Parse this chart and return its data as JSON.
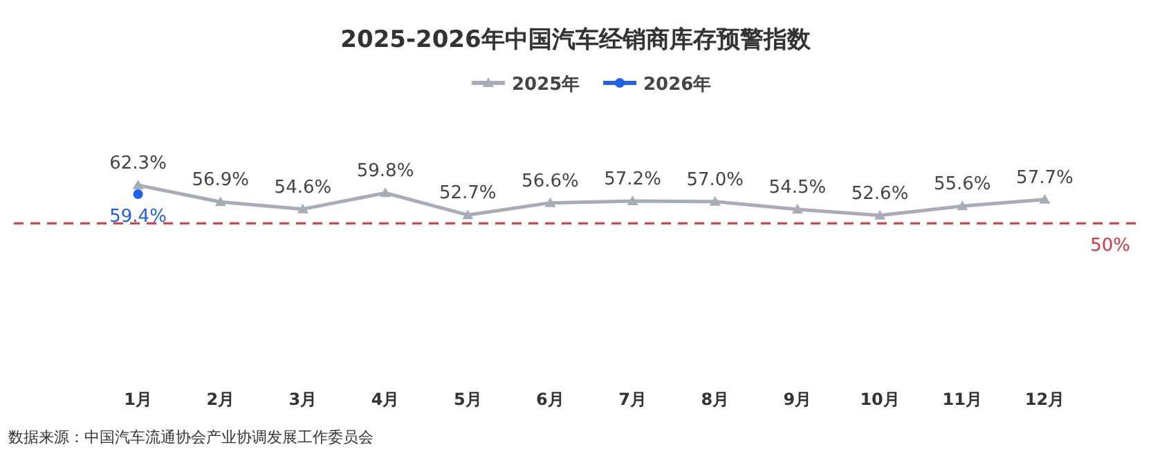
{
  "chart_data": {
    "type": "line",
    "title": "2025-2026年中国汽车经销商库存预警指数",
    "categories": [
      "1月",
      "2月",
      "3月",
      "4月",
      "5月",
      "6月",
      "7月",
      "8月",
      "9月",
      "10月",
      "11月",
      "12月"
    ],
    "series": [
      {
        "name": "2025年",
        "color": "#a7adb8",
        "marker": "triangle",
        "values": [
          62.3,
          56.9,
          54.6,
          59.8,
          52.7,
          56.6,
          57.2,
          57.0,
          54.5,
          52.6,
          55.6,
          57.7
        ],
        "value_labels": [
          "62.3%",
          "56.9%",
          "54.6%",
          "59.8%",
          "52.7%",
          "56.6%",
          "57.2%",
          "57.0%",
          "54.5%",
          "52.6%",
          "55.6%",
          "57.7%"
        ]
      },
      {
        "name": "2026年",
        "color": "#2060f0",
        "marker": "circle",
        "values": [
          59.4,
          null,
          null,
          null,
          null,
          null,
          null,
          null,
          null,
          null,
          null,
          null
        ],
        "value_labels": [
          "59.4%",
          null,
          null,
          null,
          null,
          null,
          null,
          null,
          null,
          null,
          null,
          null
        ]
      }
    ],
    "legend": "top",
    "ref_lines": [
      {
        "axis": "y",
        "value": 50,
        "label": "50%",
        "color": "#d9363e",
        "line_style": "dashed"
      }
    ],
    "annotations": [
      "数据来源：中国汽车流通协会产业协调发展工作委员会"
    ]
  }
}
